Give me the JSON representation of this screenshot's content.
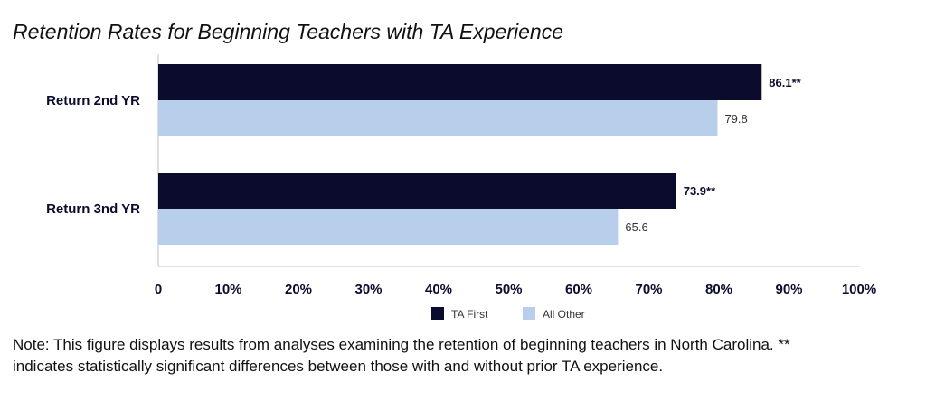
{
  "title": "Retention Rates for Beginning Teachers with TA Experience",
  "note": {
    "line1": "Note: This figure displays results from analyses examining the retention of beginning teachers in North Carolina. **",
    "line2": "indicates statistically significant differences between those with and without prior TA experience."
  },
  "chart_data": {
    "type": "bar",
    "orientation": "horizontal",
    "categories": [
      "Return 2nd YR",
      "Return 3nd YR"
    ],
    "series": [
      {
        "name": "TA First",
        "values": [
          86.1,
          73.9
        ],
        "labels": [
          "86.1**",
          "73.9**"
        ],
        "color": "#0b0b2e"
      },
      {
        "name": "All Other",
        "values": [
          79.8,
          65.6
        ],
        "labels": [
          "79.8",
          "65.6"
        ],
        "color": "#b7cfea"
      }
    ],
    "x_ticks": [
      "0",
      "10%",
      "20%",
      "30%",
      "40%",
      "50%",
      "60%",
      "70%",
      "80%",
      "90%",
      "100%"
    ],
    "xlim": [
      0,
      100
    ],
    "grid": false,
    "legend_position": "bottom-center",
    "axis_color": "#bfbfbf",
    "tick_label_color": "#0b0b2e"
  }
}
